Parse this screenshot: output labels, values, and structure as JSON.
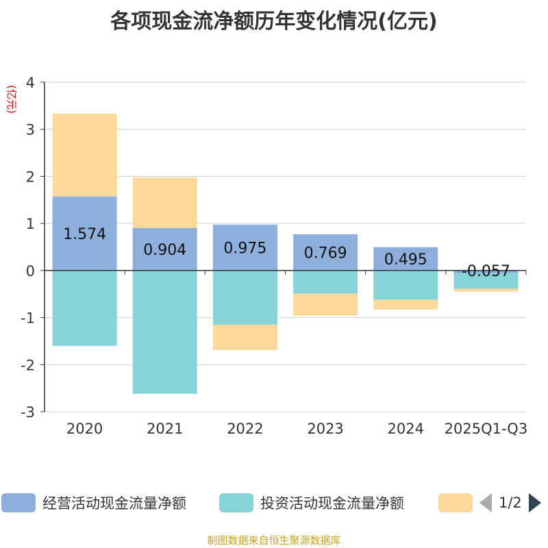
{
  "title": "各项现金流净额历年变化情况(亿元)",
  "source": "制图数据来自恒生聚源数据库",
  "pager": {
    "text": "1/2"
  },
  "legend": [
    {
      "name": "经营活动现金流量净额",
      "color": "#8eaedb"
    },
    {
      "name": "投资活动现金流量净额",
      "color": "#85d4d8"
    },
    {
      "name": "",
      "color": "#fdd89b"
    }
  ],
  "chart_data": {
    "type": "bar",
    "stacked": true,
    "title": "各项现金流净额历年变化情况(亿元)",
    "ylabel": "(亿元)",
    "ylim": [
      -3,
      4
    ],
    "yticks": [
      4,
      3,
      2,
      1,
      0,
      -1,
      -2,
      -3
    ],
    "categories": [
      "2020",
      "2021",
      "2022",
      "2023",
      "2024",
      "2025Q1-Q3"
    ],
    "series": [
      {
        "name": "经营活动现金流量净额",
        "color": "#8eaedb",
        "values": [
          1.574,
          0.904,
          0.975,
          0.769,
          0.495,
          -0.057
        ],
        "labels": [
          "1.574",
          "0.904",
          "0.975",
          "0.769",
          "0.495",
          "-0.057"
        ]
      },
      {
        "name": "投资活动现金流量净额",
        "color": "#85d4d8",
        "values": [
          -1.6,
          -2.62,
          -1.15,
          -0.49,
          -0.62,
          -0.33
        ]
      },
      {
        "name": "",
        "color": "#fdd89b",
        "values": [
          1.76,
          1.07,
          -0.54,
          -0.47,
          -0.21,
          -0.06
        ]
      }
    ]
  }
}
